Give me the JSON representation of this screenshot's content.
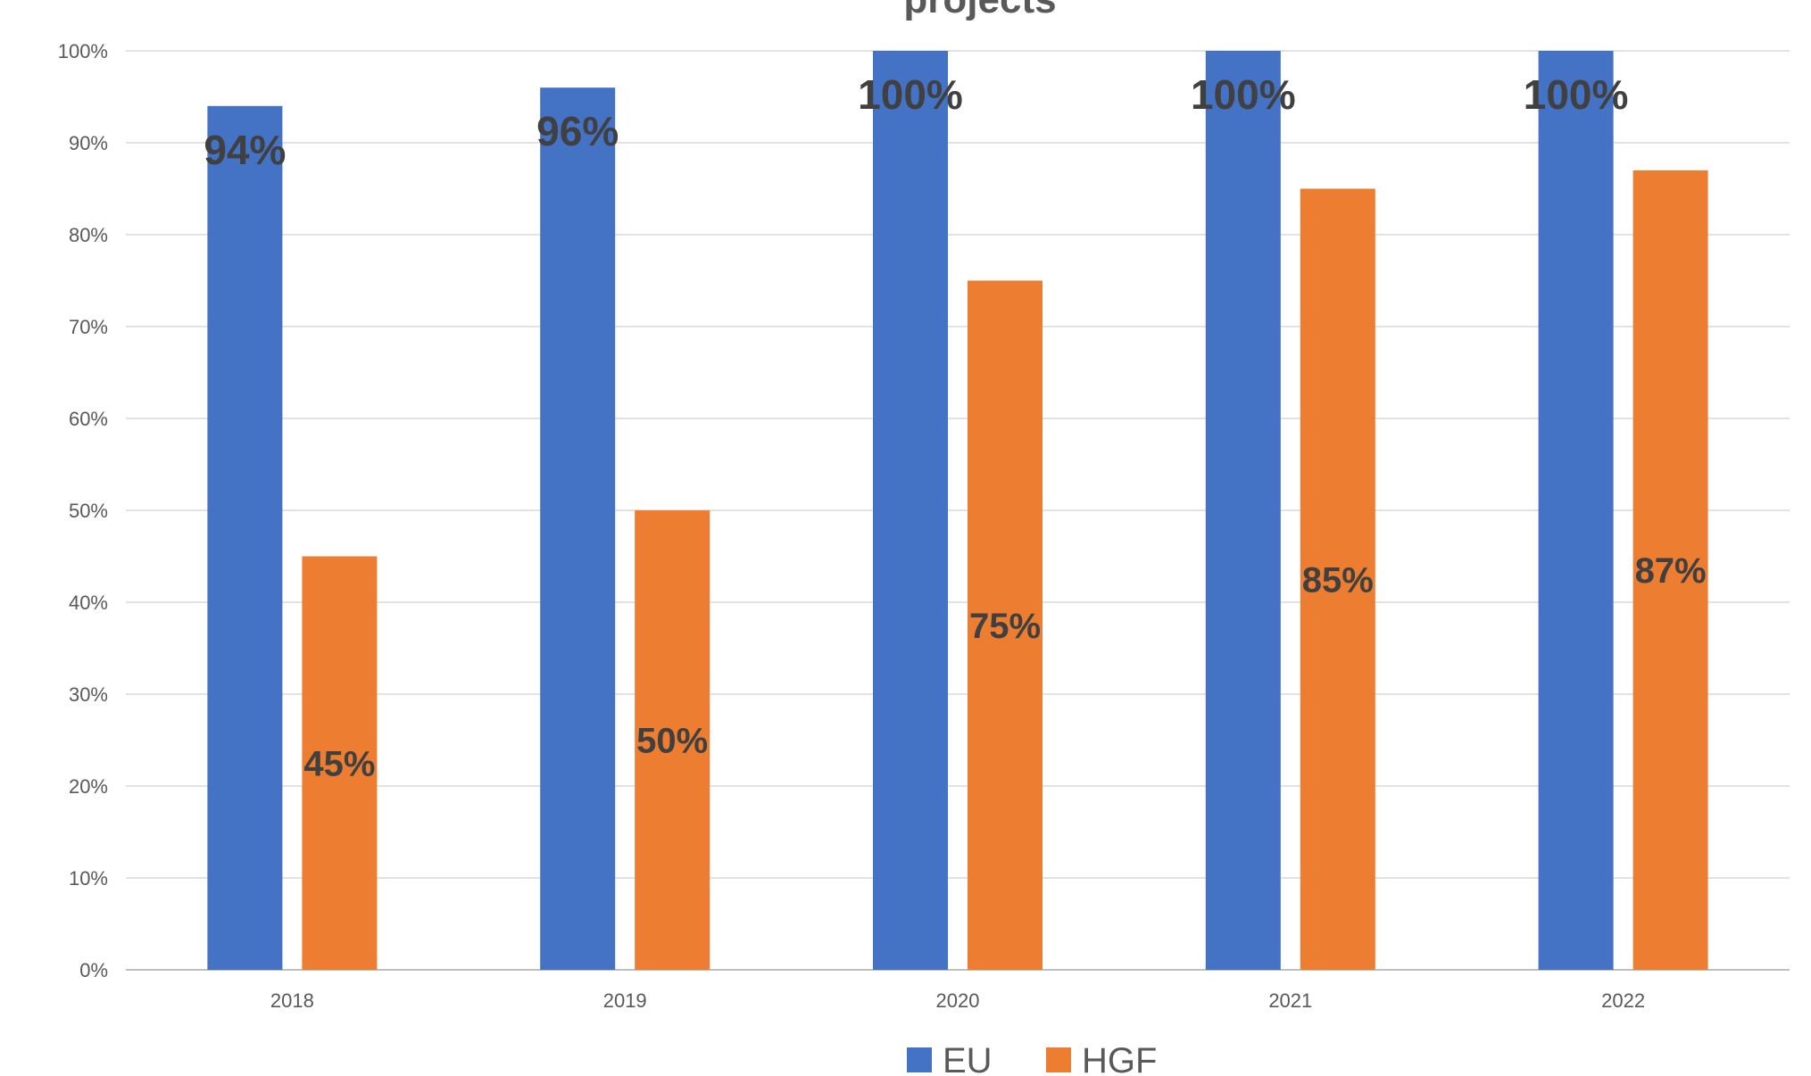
{
  "chart_data": {
    "type": "bar",
    "title": "projects",
    "categories": [
      "2018",
      "2019",
      "2020",
      "2021",
      "2022"
    ],
    "series": [
      {
        "name": "EU",
        "color": "#4472c4",
        "values": [
          94,
          96,
          100,
          100,
          100
        ],
        "labels": [
          "94%",
          "96%",
          "100%",
          "100%",
          "100%"
        ]
      },
      {
        "name": "HGF",
        "color": "#ed7d31",
        "values": [
          45,
          50,
          75,
          85,
          87
        ],
        "labels": [
          "45%",
          "50%",
          "75%",
          "85%",
          "87%"
        ]
      }
    ],
    "y_ticks": [
      "0%",
      "10%",
      "20%",
      "30%",
      "40%",
      "50%",
      "60%",
      "70%",
      "80%",
      "90%",
      "100%"
    ],
    "ylim": [
      0,
      100
    ],
    "grid": true,
    "legend": "bottom",
    "xlabel": "",
    "ylabel": ""
  }
}
